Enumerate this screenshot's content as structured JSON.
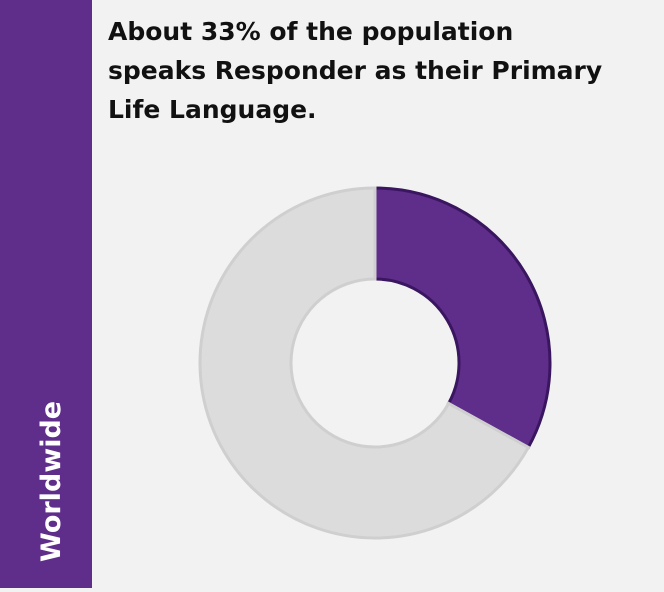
{
  "chart_data": {
    "type": "donut",
    "title_lines": [
      "About 33% of the population",
      "speaks Responder as their Primary",
      "Life Language."
    ],
    "side_label": "Worldwide",
    "values": [
      33,
      67
    ],
    "colors": [
      "#5f2d8a",
      "#dcdcdc"
    ],
    "edge_colors": [
      "#3a1660",
      "#cfcfcf"
    ]
  }
}
